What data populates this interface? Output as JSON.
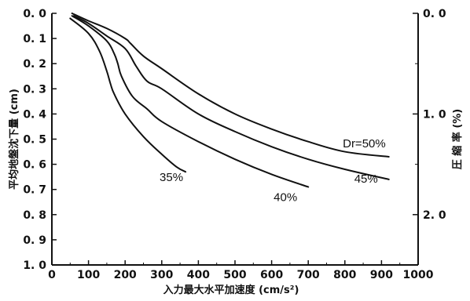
{
  "chart_data": {
    "type": "line",
    "xlabel": "入力最大水平加速度 (cm/s²)",
    "ylabel": "平均地盤沈下量 (cm)",
    "y2label": "圧 縮 率 (%)",
    "xlim": [
      0,
      1000
    ],
    "ylim": [
      0,
      1.0
    ],
    "y2lim": [
      0,
      2.5
    ],
    "y_inverted": true,
    "grid": false,
    "x_ticks": [
      0,
      100,
      200,
      300,
      400,
      500,
      600,
      700,
      800,
      900,
      1000
    ],
    "x_tick_labels": [
      "0",
      "100",
      "200",
      "300",
      "400",
      "500",
      "600",
      "700",
      "800",
      "900",
      "1000"
    ],
    "y_ticks": [
      0,
      0.1,
      0.2,
      0.3,
      0.4,
      0.5,
      0.6,
      0.7,
      0.8,
      0.9,
      1.0
    ],
    "y_tick_labels": [
      "0. 0",
      "0. 1",
      "0. 2",
      "0. 3",
      "0. 4",
      "0. 5",
      "0. 6",
      "0. 7",
      "0. 8",
      "0. 9",
      "1. 0"
    ],
    "y2_ticks": [
      0,
      1.0,
      2.0
    ],
    "y2_tick_labels": [
      "0. 0",
      "1. 0",
      "2. 0"
    ],
    "series": [
      {
        "name": "35%",
        "x": [
          50,
          100,
          130,
          150,
          160,
          170,
          200,
          250,
          300,
          340,
          365
        ],
        "y": [
          0.02,
          0.08,
          0.15,
          0.23,
          0.28,
          0.32,
          0.4,
          0.49,
          0.56,
          0.61,
          0.63
        ]
      },
      {
        "name": "40%",
        "x": [
          55,
          100,
          150,
          170,
          180,
          190,
          220,
          260,
          300,
          400,
          500,
          600,
          700
        ],
        "y": [
          0.01,
          0.05,
          0.11,
          0.16,
          0.2,
          0.25,
          0.33,
          0.38,
          0.43,
          0.51,
          0.58,
          0.64,
          0.69
        ]
      },
      {
        "name": "45%",
        "x": [
          60,
          100,
          150,
          200,
          230,
          260,
          300,
          400,
          500,
          600,
          700,
          800,
          920
        ],
        "y": [
          0.01,
          0.04,
          0.09,
          0.14,
          0.21,
          0.27,
          0.3,
          0.4,
          0.47,
          0.53,
          0.58,
          0.62,
          0.66
        ]
      },
      {
        "name": "Dr=50%",
        "x": [
          55,
          100,
          150,
          200,
          215,
          250,
          300,
          400,
          500,
          600,
          700,
          800,
          920
        ],
        "y": [
          0.0,
          0.03,
          0.06,
          0.1,
          0.12,
          0.17,
          0.22,
          0.32,
          0.4,
          0.46,
          0.51,
          0.55,
          0.57
        ]
      }
    ],
    "annotations": [
      {
        "text": "35%",
        "series": "35%"
      },
      {
        "text": "40%",
        "series": "40%"
      },
      {
        "text": "45%",
        "series": "45%"
      },
      {
        "text": "Dr=50%",
        "series": "Dr=50%"
      }
    ]
  }
}
